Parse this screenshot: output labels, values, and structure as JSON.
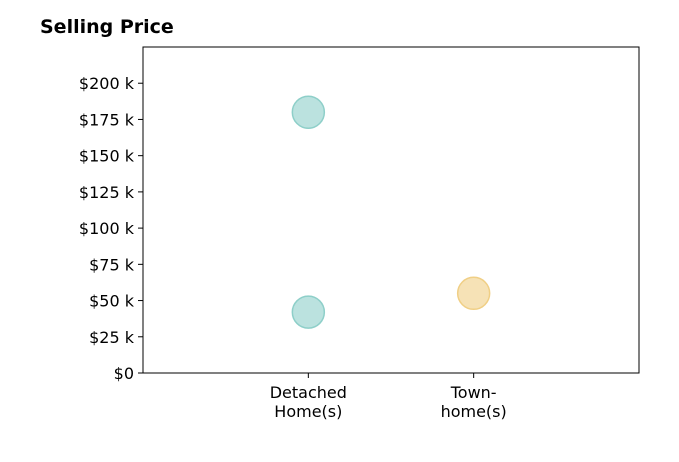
{
  "chart_data": {
    "type": "scatter",
    "title": "Selling Price",
    "xlabel": "",
    "ylabel": "",
    "categories": [
      [
        "Detached",
        "Home(s)"
      ],
      [
        "Town-",
        "home(s)"
      ]
    ],
    "xlim": [
      -1,
      2
    ],
    "ylim": [
      0,
      225
    ],
    "y_ticks": [
      0,
      25,
      50,
      75,
      100,
      125,
      150,
      175,
      200
    ],
    "y_tick_labels": [
      "$0",
      "$25 k",
      "$50 k",
      "$75 k",
      "$100 k",
      "$125 k",
      "$150 k",
      "$175 k",
      "$200 k"
    ],
    "grid": false,
    "series": [
      {
        "category": 0,
        "values": [
          180,
          42
        ],
        "color": "#8ecfc9"
      },
      {
        "category": 1,
        "values": [
          55
        ],
        "color": "#f0cf85"
      }
    ]
  }
}
